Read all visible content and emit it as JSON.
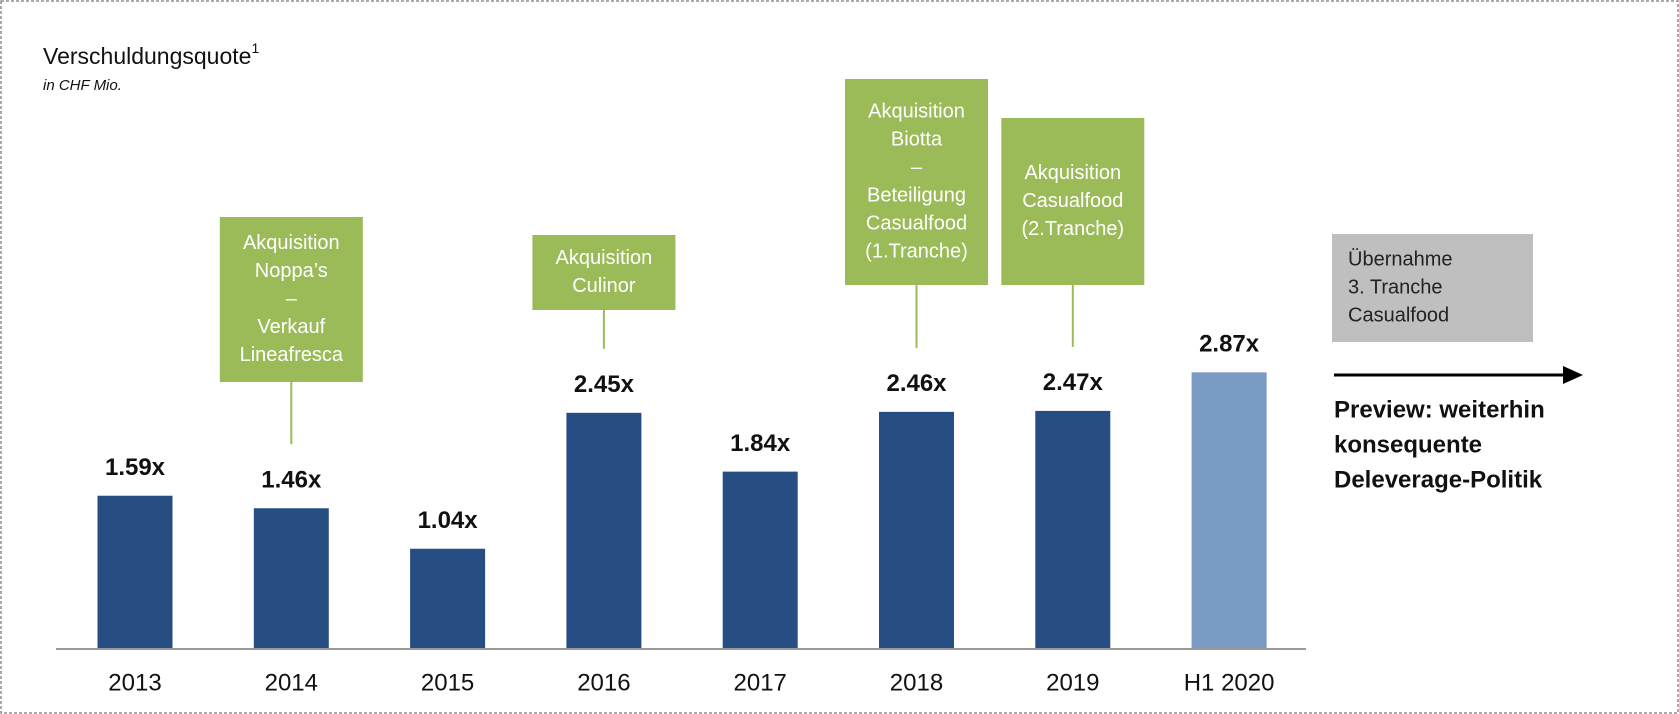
{
  "chart_data": {
    "type": "bar",
    "title": "Verschuldungsquote",
    "title_footnote": "1",
    "subtitle": "in CHF Mio.",
    "categories": [
      "2013",
      "2014",
      "2015",
      "2016",
      "2017",
      "2018",
      "2019",
      "H1 2020"
    ],
    "values": [
      1.59,
      1.46,
      1.04,
      2.45,
      1.84,
      2.46,
      2.47,
      2.87
    ],
    "value_labels": [
      "1.59x",
      "1.46x",
      "1.04x",
      "2.45x",
      "1.84x",
      "2.46x",
      "2.47x",
      "2.87x"
    ],
    "colors": [
      "#264e82",
      "#264e82",
      "#264e82",
      "#264e82",
      "#264e82",
      "#264e82",
      "#264e82",
      "#7a9cc4"
    ],
    "annotations": [
      {
        "category": "2014",
        "lines": [
          "Akquisition",
          "Noppa’s",
          "–",
          "Verkauf",
          "Lineafresca"
        ],
        "color": "#9bbb59"
      },
      {
        "category": "2016",
        "lines": [
          "Akquisition",
          "Culinor"
        ],
        "color": "#9bbb59"
      },
      {
        "category": "2018",
        "lines": [
          "Akquisition",
          "Biotta",
          "–",
          "Beteiligung",
          "Casualfood",
          "(1.Tranche)"
        ],
        "color": "#9bbb59"
      },
      {
        "category": "2019",
        "lines": [
          "Akquisition",
          "Casualfood",
          "(2.Tranche)"
        ],
        "color": "#9bbb59"
      }
    ],
    "outlook_box": {
      "lines": [
        "Übernahme",
        "3. Tranche",
        "Casualfood"
      ],
      "color": "#bfbfbf"
    },
    "outlook_text": [
      "Preview: weiterhin",
      "konsequente",
      "Deleverage-Politik"
    ]
  }
}
